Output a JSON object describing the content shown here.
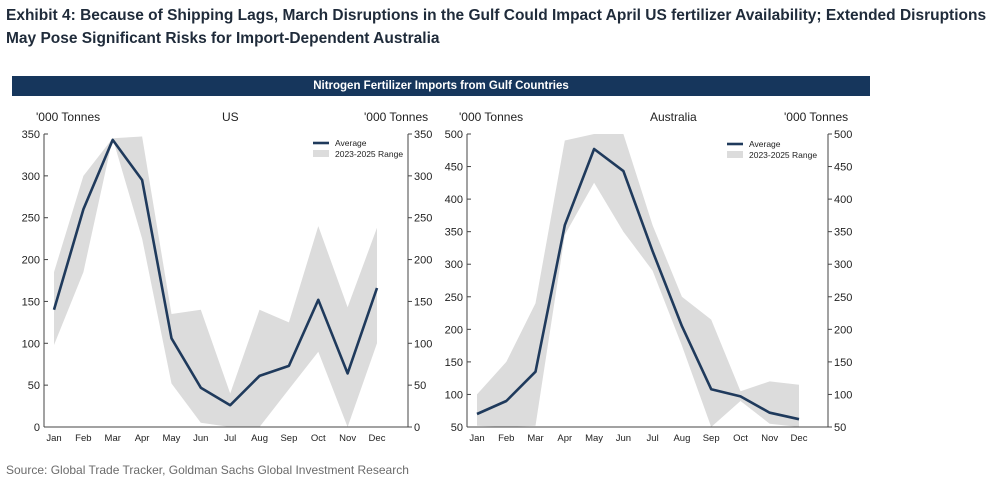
{
  "headline": "Exhibit 4: Because of Shipping Lags, March Disruptions in the Gulf Could Impact April US fertilizer Availability; Extended Disruptions May Pose Significant Risks for Import-Dependent Australia",
  "banner": "Nitrogen Fertilizer Imports from Gulf Countries",
  "source": "Source: Global Trade Tracker, Goldman Sachs Global Investment Research",
  "chart_data": [
    {
      "type": "line",
      "title": "US",
      "ylabel_left": "'000 Tonnes",
      "ylabel_right": "'000 Tonnes",
      "categories": [
        "Jan",
        "Feb",
        "Mar",
        "Apr",
        "May",
        "Jun",
        "Jul",
        "Aug",
        "Sep",
        "Oct",
        "Nov",
        "Dec"
      ],
      "ylim": [
        0,
        350
      ],
      "yticks": [
        0,
        50,
        100,
        150,
        200,
        250,
        300,
        350
      ],
      "legend_position": "top-right",
      "series": [
        {
          "name": "Average",
          "color": "#1f3a5c",
          "values": [
            140,
            260,
            343,
            295,
            106,
            47,
            26,
            61,
            73,
            152,
            64,
            166
          ]
        },
        {
          "name": "2023-2025 Range",
          "color": "#dcdcdc",
          "low": [
            98,
            185,
            345,
            225,
            52,
            5,
            0,
            0,
            45,
            90,
            0,
            100
          ],
          "high": [
            185,
            300,
            345,
            347,
            135,
            140,
            40,
            140,
            125,
            240,
            143,
            238
          ]
        }
      ]
    },
    {
      "type": "line",
      "title": "Australia",
      "ylabel_left": "'000 Tonnes",
      "ylabel_right": "'000 Tonnes",
      "categories": [
        "Jan",
        "Feb",
        "Mar",
        "Apr",
        "May",
        "Jun",
        "Jul",
        "Aug",
        "Sep",
        "Oct",
        "Nov",
        "Dec"
      ],
      "ylim": [
        50,
        500
      ],
      "yticks": [
        50,
        100,
        150,
        200,
        250,
        300,
        350,
        400,
        450,
        500
      ],
      "legend_position": "top-right",
      "series": [
        {
          "name": "Average",
          "color": "#1f3a5c",
          "values": [
            70,
            90,
            135,
            360,
            477,
            443,
            320,
            205,
            108,
            97,
            72,
            62
          ]
        },
        {
          "name": "2023-2025 Range",
          "color": "#dcdcdc",
          "low": [
            52,
            50,
            52,
            345,
            425,
            350,
            290,
            175,
            50,
            90,
            55,
            50
          ],
          "high": [
            100,
            150,
            240,
            490,
            500,
            500,
            360,
            250,
            215,
            105,
            120,
            115
          ]
        }
      ]
    }
  ]
}
